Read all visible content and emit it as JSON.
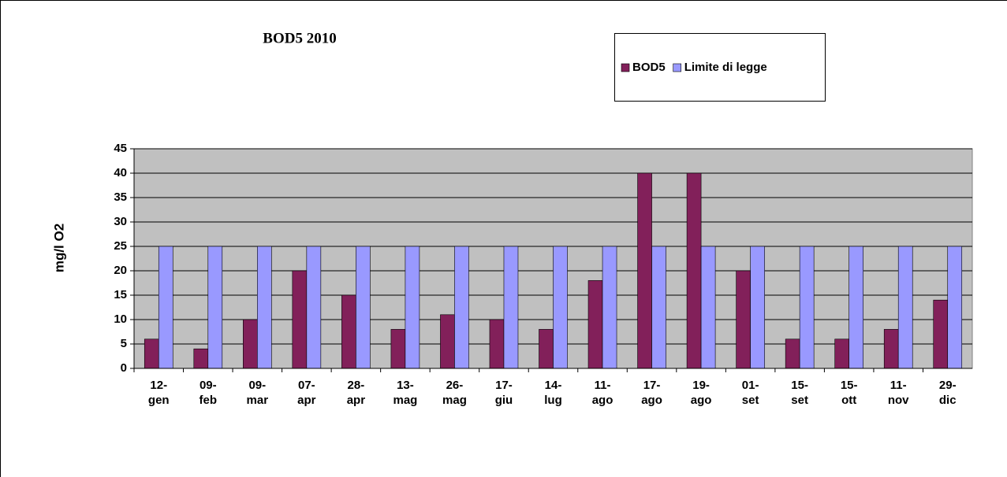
{
  "chart_data": {
    "type": "bar",
    "title": "BOD5 2010",
    "ylabel": "mg/l O2",
    "categories": [
      "12-gen",
      "09-feb",
      "09-mar",
      "07-apr",
      "28-apr",
      "13-mag",
      "26-mag",
      "17-giu",
      "14-lug",
      "11-ago",
      "17-ago",
      "19-ago",
      "01-set",
      "15-set",
      "15-ott",
      "11-nov",
      "29-dic"
    ],
    "series": [
      {
        "name": "BOD5",
        "color": "#82205a",
        "values": [
          6,
          4,
          10,
          20,
          15,
          8,
          11,
          10,
          8,
          18,
          40,
          40,
          20,
          6,
          6,
          8,
          14
        ]
      },
      {
        "name": "Limite di legge",
        "color": "#9999ff",
        "values": [
          25,
          25,
          25,
          25,
          25,
          25,
          25,
          25,
          25,
          25,
          25,
          25,
          25,
          25,
          25,
          25,
          25
        ]
      }
    ],
    "ylim": [
      0,
      45
    ],
    "yticks": [
      0,
      5,
      10,
      15,
      20,
      25,
      30,
      35,
      40,
      45
    ],
    "grid": true,
    "legend": "top-right"
  }
}
